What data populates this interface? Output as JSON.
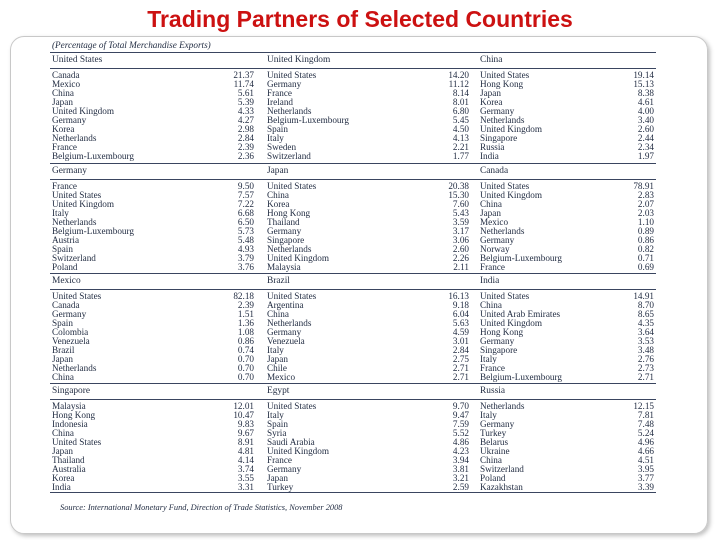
{
  "title": "Trading Partners of Selected Countries",
  "subtitle": "(Percentage of Total Merchandise Exports)",
  "source": "Source: International Monetary Fund, Direction of Trade Statistics, November 2008",
  "panels": [
    {
      "countries": [
        "United States",
        "United Kingdom",
        "China"
      ],
      "rows": [
        [
          "Canada",
          "21.37",
          "United States",
          "14.20",
          "United States",
          "19.14"
        ],
        [
          "Mexico",
          "11.74",
          "Germany",
          "11.12",
          "Hong Kong",
          "15.13"
        ],
        [
          "China",
          "5.61",
          "France",
          "8.14",
          "Japan",
          "8.38"
        ],
        [
          "Japan",
          "5.39",
          "Ireland",
          "8.01",
          "Korea",
          "4.61"
        ],
        [
          "United Kingdom",
          "4.33",
          "Netherlands",
          "6.80",
          "Germany",
          "4.00"
        ],
        [
          "Germany",
          "4.27",
          "Belgium-Luxembourg",
          "5.45",
          "Netherlands",
          "3.40"
        ],
        [
          "Korea",
          "2.98",
          "Spain",
          "4.50",
          "United Kingdom",
          "2.60"
        ],
        [
          "Netherlands",
          "2.84",
          "Italy",
          "4.13",
          "Singapore",
          "2.44"
        ],
        [
          "France",
          "2.39",
          "Sweden",
          "2.21",
          "Russia",
          "2.34"
        ],
        [
          "Belgium-Luxembourg",
          "2.36",
          "Switzerland",
          "1.77",
          "India",
          "1.97"
        ]
      ]
    },
    {
      "countries": [
        "Germany",
        "Japan",
        "Canada"
      ],
      "rows": [
        [
          "France",
          "9.50",
          "United States",
          "20.38",
          "United States",
          "78.91"
        ],
        [
          "United States",
          "7.57",
          "China",
          "15.30",
          "United Kingdom",
          "2.83"
        ],
        [
          "United Kingdom",
          "7.22",
          "Korea",
          "7.60",
          "China",
          "2.07"
        ],
        [
          "Italy",
          "6.68",
          "Hong Kong",
          "5.43",
          "Japan",
          "2.03"
        ],
        [
          "Netherlands",
          "6.50",
          "Thailand",
          "3.59",
          "Mexico",
          "1.10"
        ],
        [
          "Belgium-Luxembourg",
          "5.73",
          "Germany",
          "3.17",
          "Netherlands",
          "0.89"
        ],
        [
          "Austria",
          "5.48",
          "Singapore",
          "3.06",
          "Germany",
          "0.86"
        ],
        [
          "Spain",
          "4.93",
          "Netherlands",
          "2.60",
          "Norway",
          "0.82"
        ],
        [
          "Switzerland",
          "3.79",
          "United Kingdom",
          "2.26",
          "Belgium-Luxembourg",
          "0.71"
        ],
        [
          "Poland",
          "3.76",
          "Malaysia",
          "2.11",
          "France",
          "0.69"
        ]
      ]
    },
    {
      "countries": [
        "Mexico",
        "Brazil",
        "India"
      ],
      "rows": [
        [
          "United States",
          "82.18",
          "United States",
          "16.13",
          "United States",
          "14.91"
        ],
        [
          "Canada",
          "2.39",
          "Argentina",
          "9.18",
          "China",
          "8.70"
        ],
        [
          "Germany",
          "1.51",
          "China",
          "6.04",
          "United Arab Emirates",
          "8.65"
        ],
        [
          "Spain",
          "1.36",
          "Netherlands",
          "5.63",
          "United Kingdom",
          "4.35"
        ],
        [
          "Colombia",
          "1.08",
          "Germany",
          "4.59",
          "Hong Kong",
          "3.64"
        ],
        [
          "Venezuela",
          "0.86",
          "Venezuela",
          "3.01",
          "Germany",
          "3.53"
        ],
        [
          "Brazil",
          "0.74",
          "Italy",
          "2.84",
          "Singapore",
          "3.48"
        ],
        [
          "Japan",
          "0.70",
          "Japan",
          "2.75",
          "Italy",
          "2.76"
        ],
        [
          "Netherlands",
          "0.70",
          "Chile",
          "2.71",
          "France",
          "2.73"
        ],
        [
          "China",
          "0.70",
          "Mexico",
          "2.71",
          "Belgium-Luxembourg",
          "2.71"
        ]
      ]
    },
    {
      "countries": [
        "Singapore",
        "Egypt",
        "Russia"
      ],
      "rows": [
        [
          "Malaysia",
          "12.01",
          "United States",
          "9.70",
          "Netherlands",
          "12.15"
        ],
        [
          "Hong Kong",
          "10.47",
          "Italy",
          "9.47",
          "Italy",
          "7.81"
        ],
        [
          "Indonesia",
          "9.83",
          "Spain",
          "7.59",
          "Germany",
          "7.48"
        ],
        [
          "China",
          "9.67",
          "Syria",
          "5.52",
          "Turkey",
          "5.24"
        ],
        [
          "United States",
          "8.91",
          "Saudi Arabia",
          "4.86",
          "Belarus",
          "4.96"
        ],
        [
          "Japan",
          "4.81",
          "United Kingdom",
          "4.23",
          "Ukraine",
          "4.66"
        ],
        [
          "Thailand",
          "4.14",
          "France",
          "3.94",
          "China",
          "4.51"
        ],
        [
          "Australia",
          "3.74",
          "Germany",
          "3.81",
          "Switzerland",
          "3.95"
        ],
        [
          "Korea",
          "3.55",
          "Japan",
          "3.21",
          "Poland",
          "3.77"
        ],
        [
          "India",
          "3.31",
          "Turkey",
          "2.59",
          "Kazakhstan",
          "3.39"
        ]
      ]
    }
  ]
}
